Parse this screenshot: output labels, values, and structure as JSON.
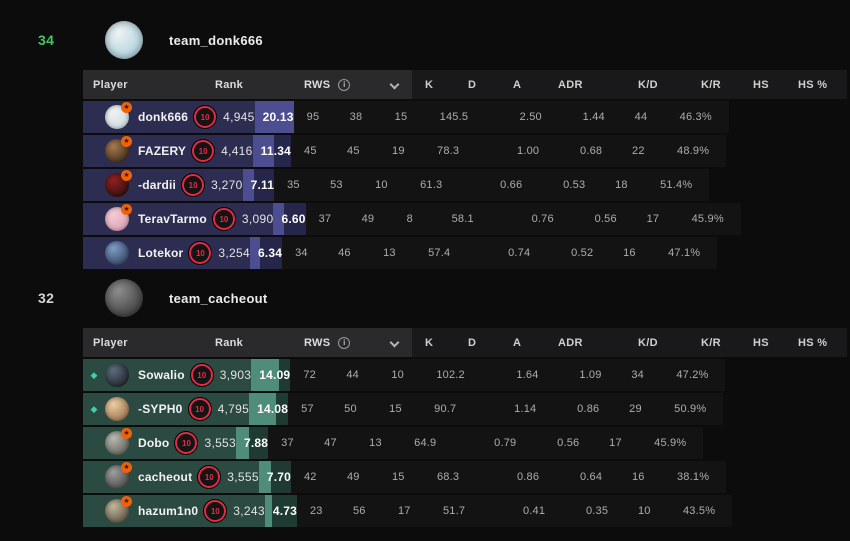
{
  "page": {
    "background": "#0c0c0c"
  },
  "table": {
    "columns": {
      "player": "Player",
      "rank": "Rank",
      "rws": "RWS",
      "rws_info_icon": "i",
      "stats": [
        "K",
        "D",
        "A",
        "ADR",
        "K/D",
        "K/R",
        "HS",
        "HS %"
      ]
    },
    "max_rws": 20.13
  },
  "teams": [
    {
      "score": "34",
      "score_color": "#43c465",
      "name": "team_donk666",
      "avatar_colors": [
        "#eef3f4",
        "#9fc9d6"
      ],
      "theme": {
        "row_bg": "#2d2d52",
        "bar_bg": "#26264a",
        "bar_fill": "#4d4d91"
      },
      "players": [
        {
          "name": "donk666",
          "diamond": false,
          "badge": true,
          "avatar_colors": [
            "#f2f2f2",
            "#c3d6da"
          ],
          "rank_level": "10",
          "rank": "4,945",
          "rws": "20.13",
          "rws_pct": 100,
          "k": "95",
          "d": "38",
          "a": "15",
          "adr": "145.5",
          "kd": "2.50",
          "kr": "1.44",
          "hs": "44",
          "hs_pct": "46.3%"
        },
        {
          "name": "FAZERY",
          "diamond": false,
          "badge": true,
          "avatar_colors": [
            "#a87a4c",
            "#241b15"
          ],
          "rank_level": "10",
          "rank": "4,416",
          "rws": "11.34",
          "rws_pct": 56.3,
          "k": "45",
          "d": "45",
          "a": "19",
          "adr": "78.3",
          "kd": "1.00",
          "kr": "0.68",
          "hs": "22",
          "hs_pct": "48.9%"
        },
        {
          "name": "-dardii",
          "diamond": false,
          "badge": true,
          "avatar_colors": [
            "#93201f",
            "#170c0c"
          ],
          "rank_level": "10",
          "rank": "3,270",
          "rws": "7.11",
          "rws_pct": 35.3,
          "k": "35",
          "d": "53",
          "a": "10",
          "adr": "61.3",
          "kd": "0.66",
          "kr": "0.53",
          "hs": "18",
          "hs_pct": "51.4%"
        },
        {
          "name": "TeravTarmo",
          "diamond": false,
          "badge": true,
          "avatar_colors": [
            "#f3cdd6",
            "#d698ab"
          ],
          "rank_level": "10",
          "rank": "3,090",
          "rws": "6.60",
          "rws_pct": 32.8,
          "k": "37",
          "d": "49",
          "a": "8",
          "adr": "58.1",
          "kd": "0.76",
          "kr": "0.56",
          "hs": "17",
          "hs_pct": "45.9%"
        },
        {
          "name": "Lotekor",
          "diamond": false,
          "badge": false,
          "avatar_colors": [
            "#7d9cc6",
            "#263452"
          ],
          "rank_level": "10",
          "rank": "3,254",
          "rws": "6.34",
          "rws_pct": 31.5,
          "k": "34",
          "d": "46",
          "a": "13",
          "adr": "57.4",
          "kd": "0.74",
          "kr": "0.52",
          "hs": "16",
          "hs_pct": "47.1%"
        }
      ]
    },
    {
      "score": "32",
      "score_color": "#d5d5d5",
      "name": "team_cacheout",
      "avatar_colors": [
        "#8d8d8d",
        "#2c2c2c"
      ],
      "theme": {
        "row_bg": "#2b4a41",
        "bar_bg": "#1e3a33",
        "bar_fill": "#4f8d7a"
      },
      "players": [
        {
          "name": "Sowalio",
          "diamond": true,
          "badge": false,
          "avatar_colors": [
            "#5d6d7d",
            "#121419"
          ],
          "rank_level": "10",
          "rank": "3,903",
          "rws": "14.09",
          "rws_pct": 70.0,
          "k": "72",
          "d": "44",
          "a": "10",
          "adr": "102.2",
          "kd": "1.64",
          "kr": "1.09",
          "hs": "34",
          "hs_pct": "47.2%"
        },
        {
          "name": "-SYPH0",
          "diamond": true,
          "badge": false,
          "avatar_colors": [
            "#eccda3",
            "#8a603c"
          ],
          "rank_level": "10",
          "rank": "4,795",
          "rws": "14.08",
          "rws_pct": 69.9,
          "k": "57",
          "d": "50",
          "a": "15",
          "adr": "90.7",
          "kd": "1.14",
          "kr": "0.86",
          "hs": "29",
          "hs_pct": "50.9%"
        },
        {
          "name": "Dobo",
          "diamond": false,
          "badge": true,
          "avatar_colors": [
            "#b9b9b1",
            "#50504a"
          ],
          "rank_level": "10",
          "rank": "3,553",
          "rws": "7.88",
          "rws_pct": 39.1,
          "k": "37",
          "d": "47",
          "a": "13",
          "adr": "64.9",
          "kd": "0.79",
          "kr": "0.56",
          "hs": "17",
          "hs_pct": "45.9%"
        },
        {
          "name": "cacheout",
          "diamond": false,
          "badge": true,
          "avatar_colors": [
            "#9e9e9e",
            "#383838"
          ],
          "rank_level": "10",
          "rank": "3,555",
          "rws": "7.70",
          "rws_pct": 38.3,
          "k": "42",
          "d": "49",
          "a": "15",
          "adr": "68.3",
          "kd": "0.86",
          "kr": "0.64",
          "hs": "16",
          "hs_pct": "38.1%"
        },
        {
          "name": "hazum1n0",
          "diamond": false,
          "badge": true,
          "avatar_colors": [
            "#c2b69c",
            "#453e33"
          ],
          "rank_level": "10",
          "rank": "3,243",
          "rws": "4.73",
          "rws_pct": 23.5,
          "k": "23",
          "d": "56",
          "a": "17",
          "adr": "51.7",
          "kd": "0.41",
          "kr": "0.35",
          "hs": "10",
          "hs_pct": "43.5%"
        }
      ]
    }
  ]
}
